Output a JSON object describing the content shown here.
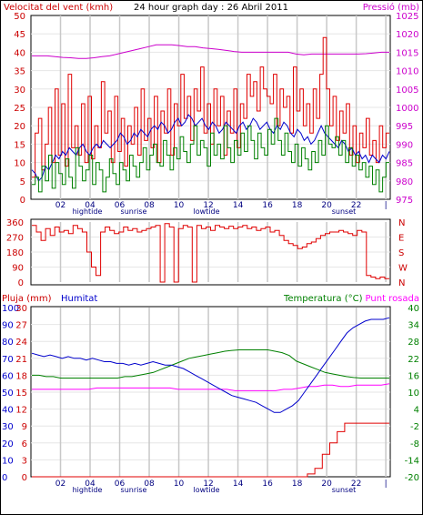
{
  "header": {
    "wind_title": "Velocitat del vent (kmh)",
    "graph_title": "24 hour graph day : 26 Abril 2011",
    "pressure_title": "Pressió (mb)"
  },
  "legend": {
    "rain": "Pluja (mm)",
    "humidity": "Humitat",
    "temperature": "Temperatura (°C)",
    "dewpoint": "Punt rosada"
  },
  "events": {
    "hightide": "hightide",
    "sunrise": "sunrise",
    "lowtide": "lowtide",
    "sunset": "sunset"
  },
  "colors": {
    "wind_gust": "#e00000",
    "wind_avg": "#008000",
    "wind_dir_avg": "#0000cc",
    "pressure": "#cc00cc",
    "direction": "#e00000",
    "humidity": "#0000cc",
    "temperature": "#008000",
    "dewpoint": "#ff00ff",
    "rain": "#e00000",
    "grid": "#c8c8c8",
    "frame": "#000000"
  },
  "chart_data": [
    {
      "type": "line",
      "name": "wind_pressure",
      "x_ticks": [
        "02",
        "04",
        "06",
        "08",
        "10",
        "12",
        "14",
        "16",
        "18",
        "20",
        "22",
        "|"
      ],
      "y_left_ticks": [
        "0",
        "5",
        "10",
        "15",
        "20",
        "25",
        "30",
        "35",
        "40",
        "45",
        "50"
      ],
      "y_left_range": [
        0,
        50
      ],
      "y_right_ticks": [
        "975",
        "980",
        "985",
        "990",
        "995",
        "1000",
        "1005",
        "1010",
        "1015",
        "1020",
        "1025"
      ],
      "y_right_range": [
        975,
        1025
      ],
      "x_range_hours": [
        0,
        24
      ],
      "gust_values": [
        6,
        18,
        22,
        8,
        15,
        25,
        10,
        30,
        12,
        26,
        9,
        34,
        14,
        20,
        12,
        26,
        10,
        28,
        11,
        20,
        14,
        32,
        18,
        24,
        10,
        28,
        13,
        22,
        9,
        20,
        15,
        25,
        12,
        30,
        16,
        22,
        14,
        28,
        10,
        24,
        18,
        30,
        12,
        26,
        20,
        34,
        22,
        28,
        16,
        30,
        24,
        36,
        18,
        26,
        15,
        30,
        20,
        28,
        12,
        24,
        18,
        30,
        14,
        26,
        22,
        34,
        28,
        32,
        24,
        36,
        30,
        28,
        26,
        34,
        20,
        30,
        25,
        28,
        18,
        36,
        24,
        30,
        20,
        26,
        18,
        30,
        22,
        34,
        44,
        30,
        20,
        28,
        16,
        24,
        18,
        26,
        12,
        20,
        10,
        18,
        14,
        22,
        12,
        16,
        10,
        20,
        14,
        18
      ],
      "avg_values": [
        4,
        6,
        2,
        9,
        5,
        12,
        3,
        10,
        7,
        4,
        11,
        6,
        3,
        14,
        9,
        5,
        8,
        12,
        4,
        10,
        8,
        2,
        6,
        11,
        7,
        4,
        10,
        8,
        5,
        12,
        9,
        6,
        10,
        14,
        8,
        12,
        15,
        10,
        9,
        16,
        12,
        8,
        14,
        11,
        17,
        13,
        10,
        15,
        20,
        12,
        16,
        14,
        9,
        18,
        12,
        15,
        11,
        20,
        14,
        10,
        16,
        12,
        18,
        13,
        20,
        16,
        11,
        18,
        14,
        12,
        19,
        15,
        22,
        16,
        12,
        18,
        13,
        10,
        15,
        9,
        14,
        11,
        8,
        13,
        10,
        16,
        12,
        20,
        15,
        14,
        17,
        12,
        16,
        10,
        14,
        9,
        12,
        8,
        10,
        6,
        9,
        4,
        8,
        2,
        6,
        10
      ],
      "wind_avg_blue_values": [
        8,
        7,
        5,
        6,
        9,
        8,
        10,
        12,
        11,
        13,
        12,
        14,
        13,
        12,
        14,
        15,
        13,
        12,
        14,
        15,
        14,
        16,
        15,
        14,
        15,
        16,
        18,
        17,
        15,
        16,
        18,
        17,
        19,
        18,
        17,
        19,
        20,
        19,
        21,
        20,
        18,
        19,
        21,
        22,
        20,
        21,
        23,
        22,
        20,
        21,
        22,
        20,
        19,
        21,
        20,
        18,
        19,
        21,
        20,
        19,
        18,
        20,
        21,
        19,
        20,
        22,
        21,
        19,
        20,
        21,
        19,
        18,
        20,
        19,
        21,
        20,
        18,
        17,
        19,
        18,
        16,
        17,
        15,
        16,
        18,
        20,
        18,
        17,
        16,
        15,
        14,
        16,
        15,
        13,
        14,
        12,
        13,
        11,
        12,
        10,
        12,
        11,
        10,
        12,
        11,
        13
      ],
      "pressure_values": [
        1014,
        1014,
        1014,
        1013.8,
        1013.6,
        1013.5,
        1013.3,
        1013.3,
        1013.5,
        1013.8,
        1014,
        1014.5,
        1015,
        1015.5,
        1016,
        1016.5,
        1017,
        1017,
        1017,
        1016.8,
        1016.5,
        1016.5,
        1016.2,
        1016,
        1015.8,
        1015.5,
        1015.2,
        1015,
        1015,
        1015,
        1015,
        1015,
        1015,
        1015,
        1014.5,
        1014.3,
        1014.5,
        1014.5,
        1014.5,
        1014.5,
        1014.5,
        1014.5,
        1014.5,
        1014.6,
        1014.8,
        1015,
        1015
      ]
    },
    {
      "type": "line",
      "name": "wind_direction",
      "y_ticks": [
        "0",
        "90",
        "180",
        "270",
        "360"
      ],
      "y_range": [
        0,
        360
      ],
      "compass": [
        "N",
        "W",
        "S",
        "E",
        "N"
      ],
      "values": [
        340,
        300,
        250,
        320,
        280,
        330,
        300,
        310,
        290,
        340,
        320,
        300,
        180,
        90,
        40,
        300,
        330,
        310,
        290,
        300,
        330,
        310,
        320,
        300,
        310,
        320,
        330,
        340,
        0,
        350,
        330,
        0,
        320,
        340,
        330,
        0,
        340,
        320,
        330,
        310,
        340,
        330,
        320,
        335,
        320,
        330,
        340,
        320,
        330,
        310,
        320,
        330,
        300,
        310,
        280,
        250,
        230,
        220,
        200,
        210,
        230,
        240,
        260,
        280,
        290,
        300,
        300,
        310,
        300,
        290,
        280,
        310,
        300,
        40,
        30,
        20,
        30,
        20
      ]
    },
    {
      "type": "line",
      "name": "humidity_temp_rain",
      "y_left_ticks": [
        "0",
        "10",
        "20",
        "30",
        "40",
        "50",
        "60",
        "70",
        "80",
        "90",
        "100"
      ],
      "y_left_range": [
        0,
        100
      ],
      "y_left_inner_ticks": [
        "0",
        "3",
        "6",
        "9",
        "12",
        "15",
        "18",
        "21",
        "24",
        "27",
        "30"
      ],
      "y_left_inner_range": [
        0,
        30
      ],
      "y_right_ticks": [
        "-20",
        "-14",
        "-8",
        "-2",
        "4",
        "10",
        "16",
        "22",
        "28",
        "34",
        "40"
      ],
      "y_right_range": [
        -20,
        40
      ],
      "x_ticks": [
        "02",
        "04",
        "06",
        "08",
        "10",
        "12",
        "14",
        "16",
        "18",
        "20",
        "22",
        "|"
      ],
      "humidity_values": [
        73,
        72,
        71,
        72,
        71,
        70,
        71,
        70,
        70,
        69,
        70,
        69,
        68,
        68,
        67,
        67,
        66,
        67,
        66,
        67,
        68,
        67,
        66,
        66,
        65,
        64,
        62,
        60,
        58,
        56,
        54,
        52,
        50,
        48,
        47,
        46,
        45,
        44,
        42,
        40,
        38,
        38,
        40,
        42,
        45,
        50,
        55,
        60,
        65,
        70,
        75,
        80,
        85,
        88,
        90,
        92,
        93,
        93,
        93,
        94
      ],
      "temperature_values": [
        16,
        16,
        15.5,
        15.5,
        15,
        15,
        15,
        15,
        15,
        15,
        15,
        15,
        15,
        15.5,
        15.5,
        16,
        16.5,
        17,
        18,
        19,
        20,
        21,
        22,
        22.5,
        23,
        23.5,
        24,
        24.5,
        24.8,
        25,
        25,
        25,
        25,
        25,
        24.5,
        24,
        23,
        21,
        20,
        19,
        18,
        17,
        16.5,
        16,
        15.5,
        15.2,
        15,
        15,
        15,
        15,
        15
      ],
      "dewpoint_values": [
        11,
        11,
        11,
        11,
        11,
        11,
        11,
        11,
        11.5,
        11.5,
        11.5,
        11.5,
        11.5,
        11.5,
        11.5,
        11.5,
        11.5,
        11.5,
        11,
        11,
        11,
        11,
        11,
        11,
        11,
        10.5,
        10.5,
        10.5,
        10.5,
        10.5,
        10.5,
        11,
        11,
        11.5,
        12,
        12,
        12.5,
        12.5,
        12,
        12,
        12.5,
        12.5,
        12.5,
        12.5,
        13
      ],
      "rain_values": [
        0,
        0,
        0,
        0,
        0,
        0,
        0,
        0,
        0,
        0,
        0,
        0,
        0,
        0,
        0,
        0,
        0,
        0,
        0,
        0,
        0,
        0,
        0,
        0,
        0,
        0,
        0,
        0,
        0,
        0,
        0,
        0,
        0,
        0,
        0,
        0,
        0,
        0.5,
        1.5,
        4,
        6,
        8,
        9.5,
        9.5,
        9.5,
        9.5,
        9.5,
        9.5
      ]
    }
  ]
}
